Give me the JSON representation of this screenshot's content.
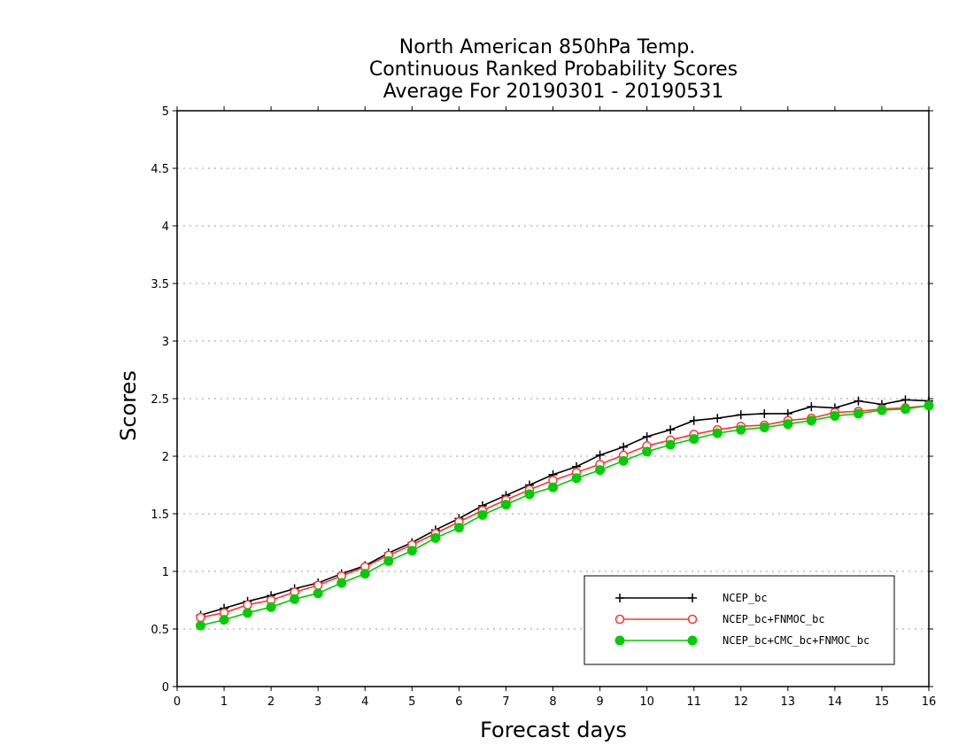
{
  "chart_data": {
    "type": "line",
    "title_lines": [
      "North American 850hPa Temp.",
      "Continuous Ranked Probability Scores",
      "Average For 20190301 - 20190531"
    ],
    "xlabel": "Forecast days",
    "ylabel": "Scores",
    "xlim": [
      0,
      16
    ],
    "ylim": [
      0,
      5
    ],
    "x_ticks": [
      0,
      1,
      2,
      3,
      4,
      5,
      6,
      7,
      8,
      9,
      10,
      11,
      12,
      13,
      14,
      15,
      16
    ],
    "y_ticks": [
      0,
      0.5,
      1,
      1.5,
      2,
      2.5,
      3,
      3.5,
      4,
      4.5,
      5
    ],
    "grid": "horizontal-dotted",
    "legend_position": "bottom-right",
    "x": [
      0.5,
      1,
      1.5,
      2,
      2.5,
      3,
      3.5,
      4,
      4.5,
      5,
      5.5,
      6,
      6.5,
      7,
      7.5,
      8,
      8.5,
      9,
      9.5,
      10,
      10.5,
      11,
      11.5,
      12,
      12.5,
      13,
      13.5,
      14,
      14.5,
      15,
      15.5,
      16
    ],
    "series": [
      {
        "name": "NCEP_bc",
        "color": "#000000",
        "marker": "plus",
        "values": [
          0.62,
          0.68,
          0.74,
          0.79,
          0.85,
          0.9,
          0.98,
          1.05,
          1.16,
          1.25,
          1.36,
          1.46,
          1.57,
          1.66,
          1.75,
          1.84,
          1.91,
          2.01,
          2.08,
          2.17,
          2.23,
          2.31,
          2.33,
          2.36,
          2.37,
          2.37,
          2.43,
          2.42,
          2.48,
          2.45,
          2.49,
          2.48
        ]
      },
      {
        "name": "NCEP_bc+FNMOC_bc",
        "color": "#ff3333",
        "marker": "open-circle",
        "values": [
          0.6,
          0.64,
          0.71,
          0.75,
          0.82,
          0.88,
          0.96,
          1.04,
          1.14,
          1.23,
          1.33,
          1.43,
          1.53,
          1.62,
          1.71,
          1.79,
          1.86,
          1.93,
          2.01,
          2.09,
          2.14,
          2.19,
          2.23,
          2.26,
          2.27,
          2.31,
          2.33,
          2.38,
          2.39,
          2.41,
          2.42,
          2.44
        ]
      },
      {
        "name": "NCEP_bc+CMC_bc+FNMOC_bc",
        "color": "#00cc00",
        "marker": "filled-circle",
        "values": [
          0.53,
          0.58,
          0.64,
          0.69,
          0.76,
          0.81,
          0.9,
          0.98,
          1.09,
          1.18,
          1.29,
          1.38,
          1.49,
          1.58,
          1.67,
          1.73,
          1.81,
          1.88,
          1.96,
          2.04,
          2.1,
          2.15,
          2.2,
          2.23,
          2.25,
          2.28,
          2.31,
          2.35,
          2.37,
          2.4,
          2.41,
          2.44
        ]
      }
    ]
  }
}
